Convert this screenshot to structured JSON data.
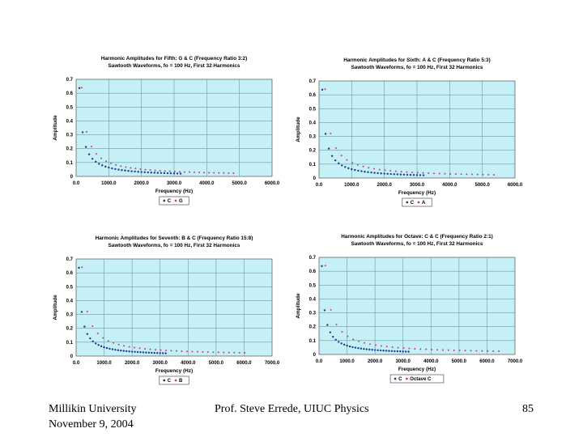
{
  "footer": {
    "institution": "Millikin University",
    "date": "November 9, 2004",
    "presenter": "Prof. Steve Errede, UIUC Physics",
    "page_number": "85"
  },
  "colors": {
    "series_c": "#1f3c8f",
    "series_other": "#d1358a",
    "plot_bg": "#c4f0f6",
    "grid": "#6f9aa0"
  },
  "chart_data": [
    {
      "type": "scatter",
      "title": "Harmonic Amplitudes for Fifth: G & C (Frequency Ratio 3:2)",
      "subtitle": "Sawtooth Waveforms, fo = 100 Hz, First 32 Harmonics",
      "xlabel": "Frequency (Hz)",
      "ylabel": "Amplitude",
      "xlim": [
        0,
        6000
      ],
      "ylim": [
        0,
        0.7
      ],
      "xticks": [
        "0.0",
        "1000.0",
        "2000.0",
        "3000.0",
        "4000.0",
        "5000.0",
        "6000.0"
      ],
      "yticks": [
        "0",
        "0.1",
        "0.2",
        "0.3",
        "0.4",
        "0.5",
        "0.6",
        "0.7"
      ],
      "legend": "bottom",
      "ratio": 1.5,
      "series": [
        {
          "name": "C",
          "color": "#1f3c8f"
        },
        {
          "name": "G",
          "color": "#d1358a"
        }
      ]
    },
    {
      "type": "scatter",
      "title": "Harmonic Amplitudes for Sixth: A & C (Frequency Ratio 5:3)",
      "subtitle": "Sawtooth Waveforms, fo = 100 Hz, First 32 Harmonics",
      "xlabel": "Frequency (Hz)",
      "ylabel": "Amplitude",
      "xlim": [
        0,
        6000
      ],
      "ylim": [
        0,
        0.7
      ],
      "xticks": [
        "0.0",
        "1000.0",
        "2000.0",
        "3000.0",
        "4000.0",
        "5000.0",
        "6000.0"
      ],
      "yticks": [
        "0",
        "0.1",
        "0.2",
        "0.3",
        "0.4",
        "0.5",
        "0.6",
        "0.7"
      ],
      "legend": "bottom",
      "ratio": 1.6667,
      "series": [
        {
          "name": "C",
          "color": "#1f3c8f"
        },
        {
          "name": "A",
          "color": "#d1358a"
        }
      ]
    },
    {
      "type": "scatter",
      "title": "Harmonic Amplitudes for Seventh: B & C (Frequency Ratio 15:8)",
      "subtitle": "Sawtooth Waveforms, fo = 100 Hz, First 32 Harmonics",
      "xlabel": "Frequency (Hz)",
      "ylabel": "Amplitude",
      "xlim": [
        0,
        7000
      ],
      "ylim": [
        0,
        0.7
      ],
      "xticks": [
        "0.0",
        "1000.0",
        "2000.0",
        "3000.0",
        "4000.0",
        "5000.0",
        "6000.0",
        "7000.0"
      ],
      "yticks": [
        "0",
        "0.1",
        "0.2",
        "0.3",
        "0.4",
        "0.5",
        "0.6",
        "0.7"
      ],
      "legend": "bottom",
      "ratio": 1.875,
      "series": [
        {
          "name": "C",
          "color": "#1f3c8f"
        },
        {
          "name": "B",
          "color": "#d1358a"
        }
      ]
    },
    {
      "type": "scatter",
      "title": "Harmonic Amplitudes for Octave: C & C (Frequency Ratio 2:1)",
      "subtitle": "Sawtooth Waveforms, fo = 100 Hz, First 32 Harmonics",
      "xlabel": "Frequency (Hz)",
      "ylabel": "Amplitude",
      "xlim": [
        0,
        7000
      ],
      "ylim": [
        0,
        0.7
      ],
      "xticks": [
        "0.0",
        "1000.0",
        "2000.0",
        "3000.0",
        "4000.0",
        "5000.0",
        "6000.0",
        "7000.0"
      ],
      "yticks": [
        "0",
        "0.1",
        "0.2",
        "0.3",
        "0.4",
        "0.5",
        "0.6",
        "0.7"
      ],
      "legend": "bottom",
      "ratio": 2.0,
      "series": [
        {
          "name": "C",
          "color": "#1f3c8f"
        },
        {
          "name": "Octave C",
          "color": "#d1358a"
        }
      ]
    }
  ]
}
